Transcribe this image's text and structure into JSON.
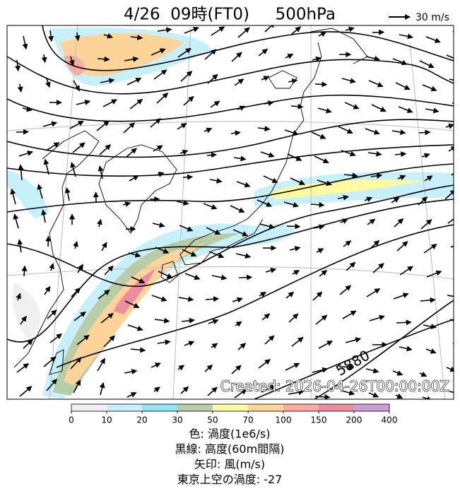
{
  "header": {
    "title": "4/26  09時(FT0)     500hPa",
    "wind_scale": "30 m/s"
  },
  "map": {
    "contour_label": "5880",
    "created": "Created: 2026-04-26T00:00:00Z"
  },
  "colorbar": {
    "ticks": [
      0,
      10,
      20,
      30,
      50,
      70,
      100,
      150,
      200,
      400
    ],
    "colors": [
      "#f0f0f0",
      "#c8f0fa",
      "#90e4f4",
      "#b8cca8",
      "#fffaa0",
      "#ffd49a",
      "#ffaaa0",
      "#f08ca0",
      "#c8a0d4"
    ]
  },
  "captions": [
    "色: 渦度(1e6/s)",
    "黒線: 高度(60m間隔)",
    "矢印: 風(m/s)",
    "東京上空の渦度: -27"
  ]
}
